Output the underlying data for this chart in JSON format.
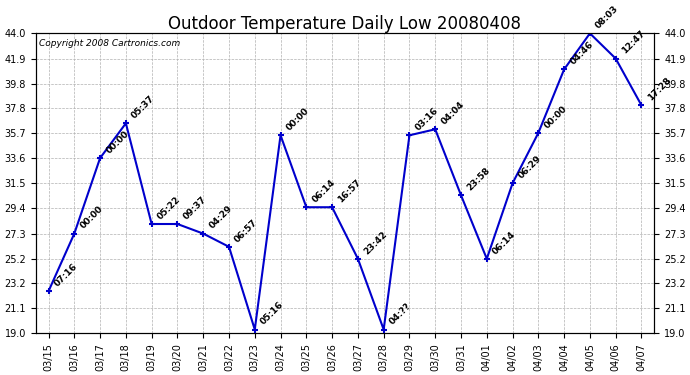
{
  "title": "Outdoor Temperature Daily Low 20080408",
  "copyright": "Copyright 2008 Cartronics.com",
  "dates": [
    "03/15",
    "03/16",
    "03/17",
    "03/18",
    "03/19",
    "03/20",
    "03/21",
    "03/22",
    "03/23",
    "03/24",
    "03/25",
    "03/26",
    "03/27",
    "03/28",
    "03/29",
    "03/30",
    "03/31",
    "04/01",
    "04/02",
    "04/03",
    "04/04",
    "04/05",
    "04/06",
    "04/07"
  ],
  "values": [
    22.5,
    27.3,
    33.6,
    36.5,
    28.1,
    28.1,
    27.3,
    26.2,
    19.3,
    35.5,
    29.5,
    29.5,
    25.2,
    19.3,
    35.5,
    36.0,
    30.5,
    25.2,
    31.5,
    35.7,
    41.0,
    44.0,
    41.9,
    38.0
  ],
  "labels": [
    "07:16",
    "00:00",
    "00:00",
    "05:37",
    "05:22",
    "09:37",
    "04:29",
    "06:57",
    "05:16",
    "00:00",
    "06:14",
    "16:57",
    "23:42",
    "04:??",
    "03:16",
    "04:04",
    "23:58",
    "06:14",
    "06:29",
    "00:00",
    "04:46",
    "08:03",
    "12:47",
    "17:28"
  ],
  "line_color": "#0000cc",
  "marker_color": "#0000cc",
  "bg_color": "#ffffff",
  "grid_color": "#b0b0b0",
  "label_color": "#000000",
  "ylim": [
    19.0,
    44.0
  ],
  "yticks": [
    19.0,
    21.1,
    23.2,
    25.2,
    27.3,
    29.4,
    31.5,
    33.6,
    35.7,
    37.8,
    39.8,
    41.9,
    44.0
  ],
  "title_fontsize": 12,
  "label_fontsize": 6.5,
  "tick_fontsize": 7,
  "copyright_fontsize": 6.5
}
